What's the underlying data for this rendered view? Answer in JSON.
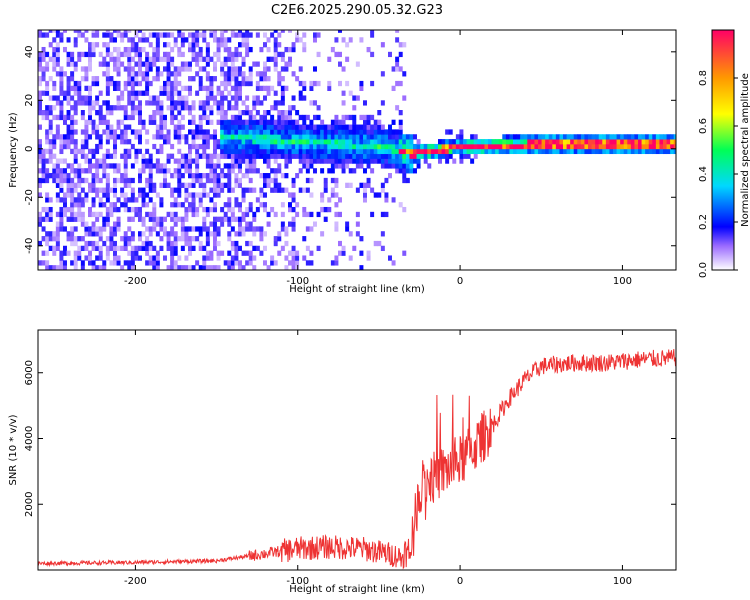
{
  "chart_data": [
    {
      "type": "heatmap",
      "title": "C2E6.2025.290.05.32.G23",
      "xlabel": "Height of straight line (km)",
      "ylabel": "Frequency (Hz)",
      "xlim": [
        -260,
        133
      ],
      "ylim": [
        -50,
        49
      ],
      "x_ticks": [
        -200,
        -100,
        0,
        100
      ],
      "y_ticks": [
        -40,
        -20,
        0,
        20,
        40
      ],
      "colorbar": {
        "label": "Normalized spectral amplitude",
        "range": [
          0.0,
          1.0
        ],
        "ticks": [
          "0.0",
          "0.2",
          "0.4",
          "0.6",
          "0.8"
        ],
        "tick_values": [
          0.0,
          0.2,
          0.4,
          0.6,
          0.8
        ]
      },
      "features": {
        "noise_region_height_km": [
          -260,
          -35
        ],
        "concentrated_signal_start_km": -150,
        "signal_band_center_hz": [
          {
            "height": -150,
            "freq": 4
          },
          {
            "height": -100,
            "freq": 2
          },
          {
            "height": -50,
            "freq": 0
          },
          {
            "height": -30,
            "freq": -3
          },
          {
            "height": 0,
            "freq": 0
          },
          {
            "height": 50,
            "freq": 1
          },
          {
            "height": 100,
            "freq": 1
          },
          {
            "height": 133,
            "freq": 1
          }
        ]
      }
    },
    {
      "type": "line",
      "xlabel": "Height of straight line (km)",
      "ylabel": "SNR (10 * v/v)",
      "xlim": [
        -260,
        133
      ],
      "ylim": [
        0,
        7300
      ],
      "x_ticks": [
        -200,
        -100,
        0,
        100
      ],
      "y_ticks": [
        2000,
        4000,
        6000
      ],
      "series": [
        {
          "name": "SNR",
          "color": "#ee3333",
          "x": [
            -260,
            -200,
            -150,
            -120,
            -100,
            -80,
            -60,
            -40,
            -32,
            -28,
            -25,
            -20,
            -10,
            0,
            10,
            20,
            30,
            40,
            50,
            70,
            90,
            110,
            133
          ],
          "y": [
            200,
            230,
            280,
            500,
            650,
            700,
            650,
            450,
            300,
            1400,
            2500,
            2700,
            3000,
            3300,
            3800,
            4400,
            5200,
            5800,
            6200,
            6300,
            6300,
            6400,
            6450
          ]
        }
      ]
    }
  ]
}
